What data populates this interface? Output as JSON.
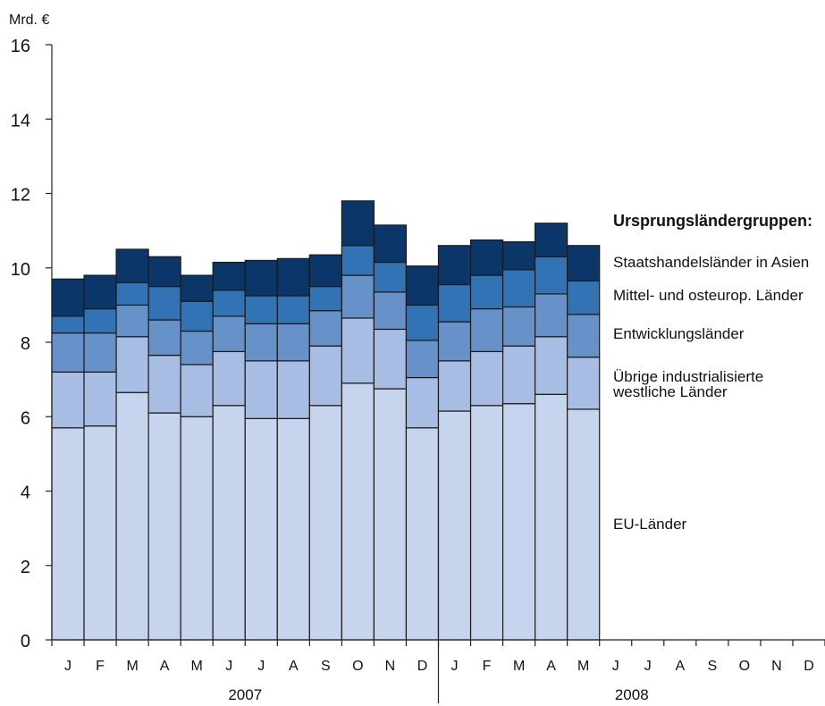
{
  "chart_data": {
    "type": "bar",
    "stacked": true,
    "ylabel": "Mrd. €",
    "ylim": [
      0,
      16
    ],
    "yticks": [
      0,
      2,
      4,
      6,
      8,
      10,
      12,
      14,
      16
    ],
    "grid": false,
    "legend_position": "right",
    "legend_title": "Ursprungsländergruppen:",
    "categories": [
      "J",
      "F",
      "M",
      "A",
      "M",
      "J",
      "J",
      "A",
      "S",
      "O",
      "N",
      "D",
      "J",
      "F",
      "M",
      "A",
      "M",
      "J",
      "J",
      "A",
      "S",
      "O",
      "N",
      "D"
    ],
    "year_labels": [
      "2007",
      "2008"
    ],
    "series": [
      {
        "name": "EU-Länder",
        "color": "#c6d4ed",
        "values": [
          5.7,
          5.75,
          6.65,
          6.1,
          6.0,
          6.3,
          5.95,
          5.95,
          6.3,
          6.9,
          6.75,
          5.7,
          6.15,
          6.3,
          6.35,
          6.6,
          6.2,
          null,
          null,
          null,
          null,
          null,
          null,
          null
        ]
      },
      {
        "name": "Übrige industrialisierte westliche Länder",
        "color": "#a8bde3",
        "values": [
          1.5,
          1.45,
          1.5,
          1.55,
          1.4,
          1.45,
          1.55,
          1.55,
          1.6,
          1.75,
          1.6,
          1.35,
          1.35,
          1.45,
          1.55,
          1.55,
          1.4,
          null,
          null,
          null,
          null,
          null,
          null,
          null
        ]
      },
      {
        "name": "Entwicklungsländer",
        "color": "#6691c9",
        "values": [
          1.05,
          1.05,
          0.85,
          0.95,
          0.9,
          0.95,
          1.0,
          1.0,
          0.95,
          1.15,
          1.0,
          1.0,
          1.05,
          1.15,
          1.05,
          1.15,
          1.15,
          null,
          null,
          null,
          null,
          null,
          null,
          null
        ]
      },
      {
        "name": "Mittel- und osteurop. Länder",
        "color": "#3273b5",
        "values": [
          0.45,
          0.65,
          0.6,
          0.9,
          0.8,
          0.7,
          0.75,
          0.75,
          0.65,
          0.8,
          0.8,
          0.95,
          1.0,
          0.9,
          1.0,
          1.0,
          0.9,
          null,
          null,
          null,
          null,
          null,
          null,
          null
        ]
      },
      {
        "name": "Staatshandelsländer in Asien",
        "color": "#0b3669",
        "values": [
          1.0,
          0.9,
          0.9,
          0.8,
          0.7,
          0.75,
          0.95,
          1.0,
          0.85,
          1.2,
          1.0,
          1.05,
          1.05,
          0.95,
          0.75,
          0.9,
          0.95,
          null,
          null,
          null,
          null,
          null,
          null,
          null
        ]
      }
    ]
  }
}
